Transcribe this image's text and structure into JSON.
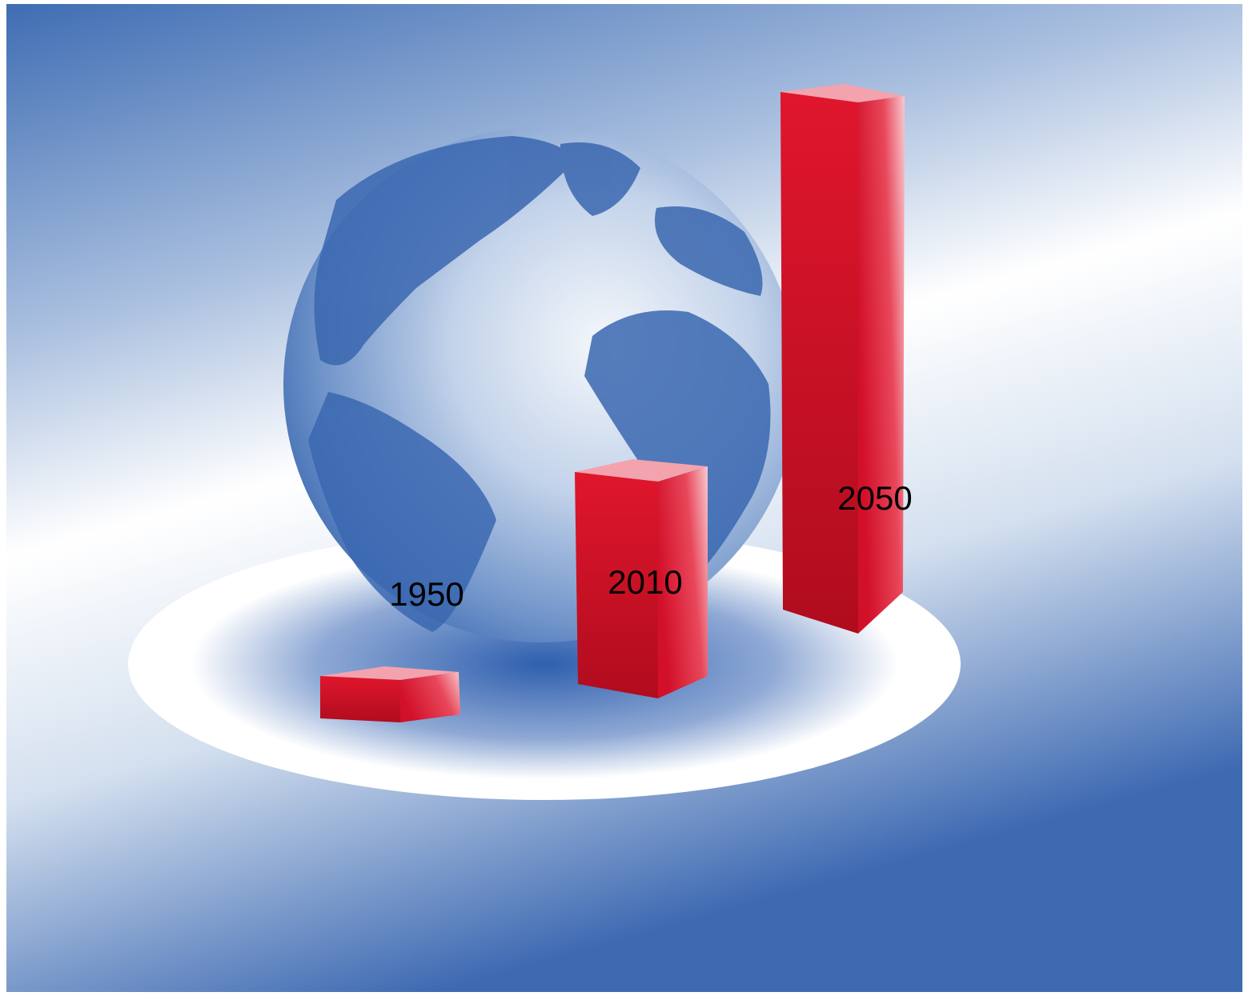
{
  "labels": [
    "1950",
    "2010",
    "2050"
  ]
}
